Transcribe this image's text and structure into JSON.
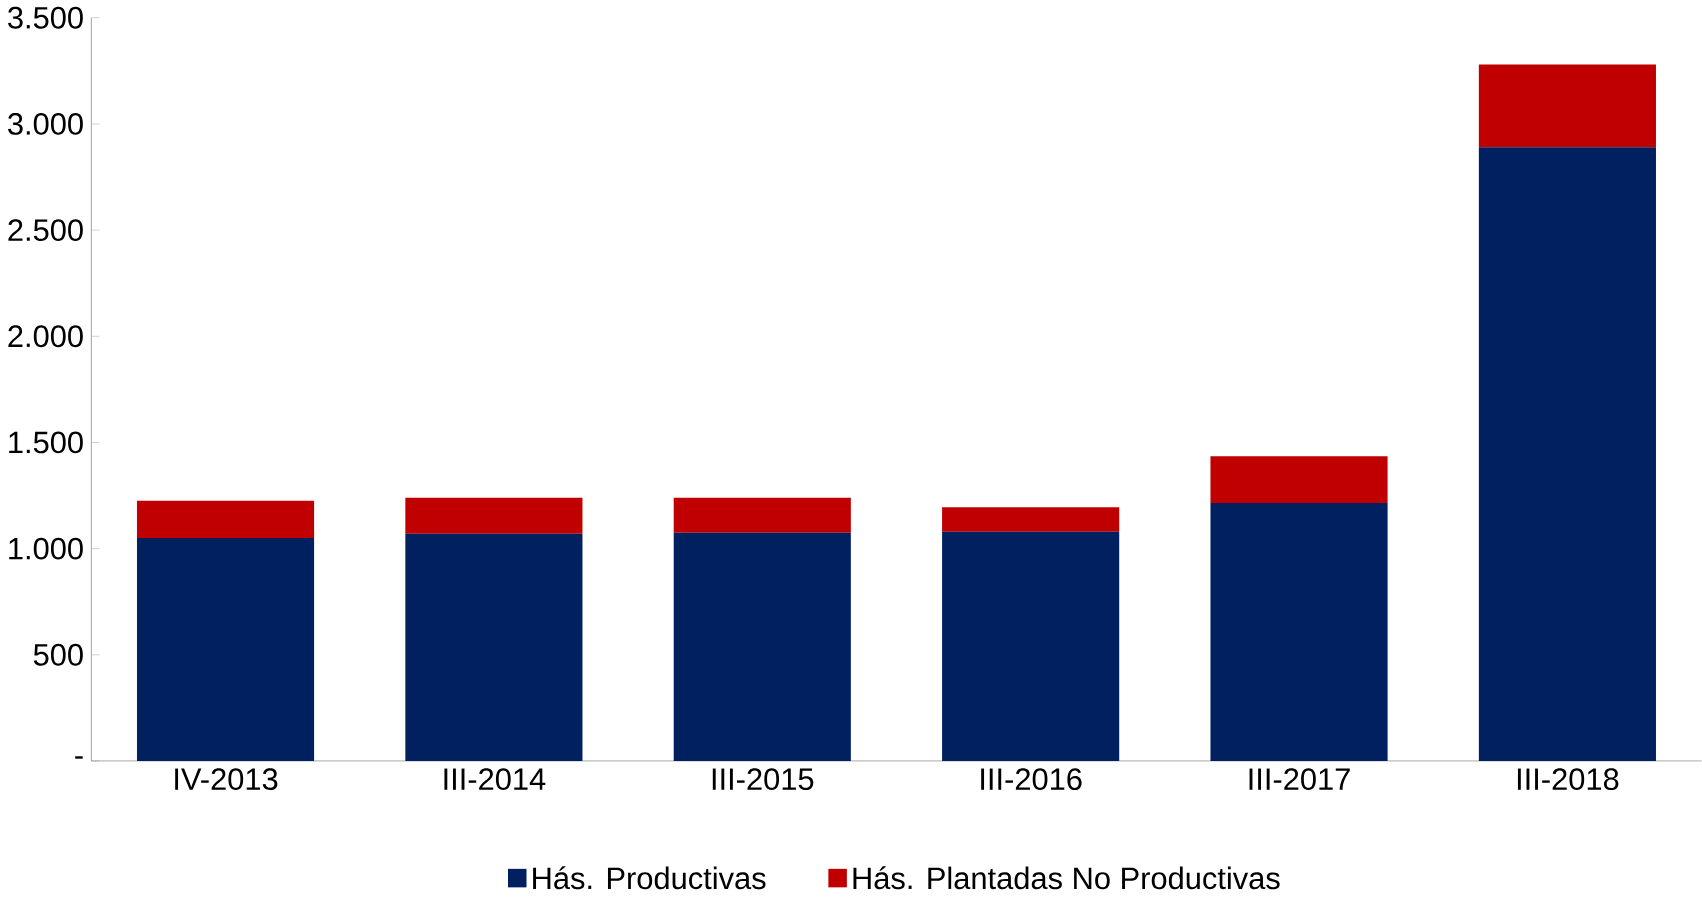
{
  "chart_data": {
    "type": "bar",
    "stacked": true,
    "categories": [
      "IV-2013",
      "III-2014",
      "III-2015",
      "III-2016",
      "III-2017",
      "III-2018"
    ],
    "series": [
      {
        "name": "Hás. Productivas",
        "color": "#002060",
        "values": [
          1050,
          1070,
          1075,
          1080,
          1215,
          2890
        ]
      },
      {
        "name": "Hás. Plantadas No Productivas",
        "color": "#c00000",
        "values": [
          175,
          170,
          165,
          115,
          220,
          390
        ]
      }
    ],
    "ylim": [
      0,
      3500
    ],
    "yticks": [
      {
        "value": 0,
        "label": "-"
      },
      500,
      {
        "value": 1000,
        "label": "1.000"
      },
      {
        "value": 1500,
        "label": "1.500"
      },
      {
        "value": 2000,
        "label": "2.000"
      },
      {
        "value": 2500,
        "label": "2.500"
      },
      {
        "value": 3000,
        "label": "3.000"
      },
      {
        "value": 3500,
        "label": "3.500"
      }
    ],
    "grid": false,
    "legend": "bottom"
  }
}
